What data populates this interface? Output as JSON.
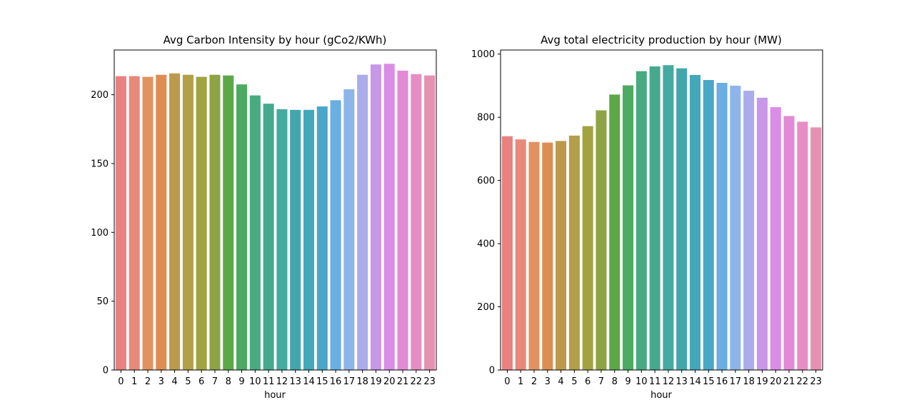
{
  "chart_data": [
    {
      "type": "bar",
      "title": "Avg Carbon Intensity by hour (gCo2/KWh)",
      "xlabel": "hour",
      "ylabel": "",
      "categories": [
        "0",
        "1",
        "2",
        "3",
        "4",
        "5",
        "6",
        "7",
        "8",
        "9",
        "10",
        "11",
        "12",
        "13",
        "14",
        "15",
        "16",
        "17",
        "18",
        "19",
        "20",
        "21",
        "22",
        "23"
      ],
      "values": [
        213.5,
        213.5,
        213,
        214.5,
        215.5,
        214.5,
        213,
        214.5,
        214,
        207.5,
        199.5,
        193.5,
        189.5,
        189,
        189,
        191.5,
        196,
        204,
        214.5,
        222,
        222.5,
        217.5,
        215,
        214
      ],
      "ylim": [
        0,
        232.5
      ],
      "yticks": [
        "0",
        "50",
        "100",
        "150",
        "200"
      ],
      "ytick_values": [
        0,
        50,
        100,
        150,
        200
      ],
      "grid": false,
      "legend": "none"
    },
    {
      "type": "bar",
      "title": "Avg total electricity production by hour (MW)",
      "xlabel": "hour",
      "ylabel": "",
      "categories": [
        "0",
        "1",
        "2",
        "3",
        "4",
        "5",
        "6",
        "7",
        "8",
        "9",
        "10",
        "11",
        "12",
        "13",
        "14",
        "15",
        "16",
        "17",
        "18",
        "19",
        "20",
        "21",
        "22",
        "23"
      ],
      "values": [
        740,
        730,
        722,
        720,
        725,
        742,
        772,
        822,
        872,
        901,
        946,
        961,
        965,
        955,
        934,
        918,
        909,
        900,
        884,
        862,
        832,
        804,
        786,
        768
      ],
      "ylim": [
        0,
        1013
      ],
      "yticks": [
        "0",
        "200",
        "400",
        "600",
        "800",
        "1000"
      ],
      "ytick_values": [
        0,
        200,
        400,
        600,
        800,
        1000
      ],
      "grid": false,
      "legend": "none"
    }
  ],
  "palette": [
    "#e8817f",
    "#e8897a",
    "#e19260",
    "#de8d52",
    "#bb9a4c",
    "#b39e49",
    "#a2a33f",
    "#8ea444",
    "#5ca847",
    "#4caa61",
    "#47aa80",
    "#45a98d",
    "#45aaa0",
    "#43a6ac",
    "#43a8b9",
    "#4aa7c7",
    "#6aaee2",
    "#8eb5ea",
    "#abacea",
    "#c897e8",
    "#db8ce6",
    "#e28ad6",
    "#e68ec4",
    "#e591b1"
  ]
}
